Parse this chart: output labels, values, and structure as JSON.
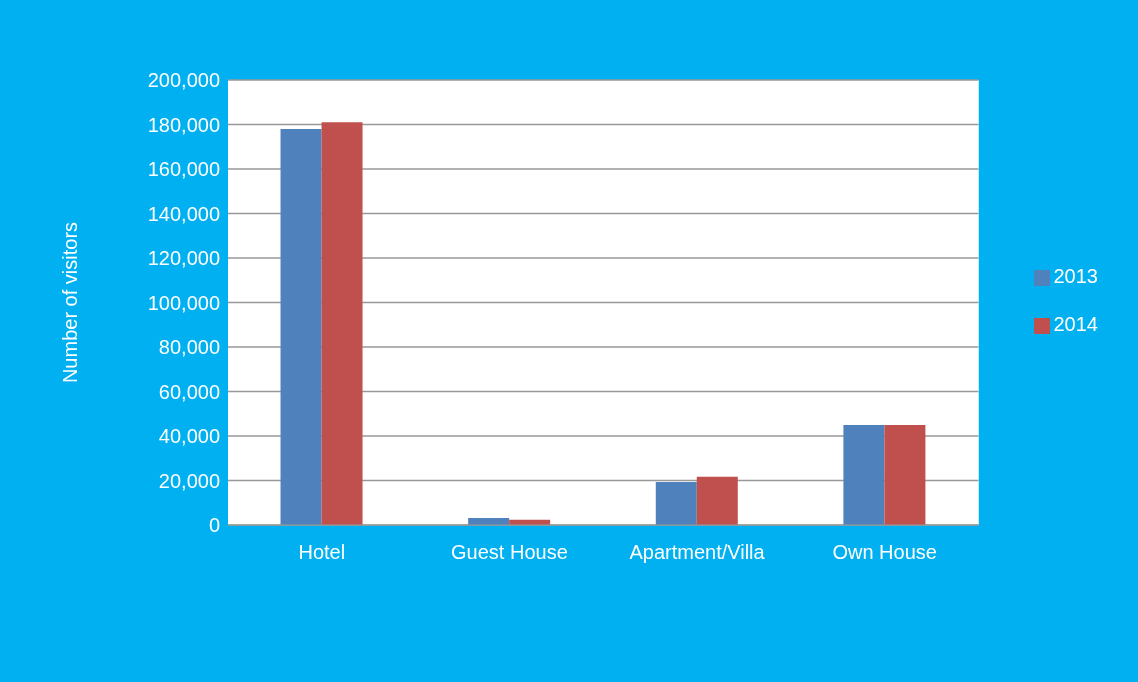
{
  "chart_data": {
    "type": "bar",
    "ylabel": "Number of visitors",
    "categories": [
      "Hotel",
      "Guest House",
      "Apartment/Villa",
      "Own House"
    ],
    "series": [
      {
        "name": "2013",
        "color": "#4f81bd",
        "values": [
          178000,
          3100,
          19300,
          45000
        ]
      },
      {
        "name": "2014",
        "color": "#c0504d",
        "values": [
          181000,
          2400,
          21700,
          45000
        ]
      }
    ],
    "ylim": [
      0,
      200000
    ],
    "yticks": [
      0,
      {
        "value": 20000,
        "label": "20,000"
      },
      {
        "value": 40000,
        "label": "40,000"
      },
      {
        "value": 60000,
        "label": "60,000"
      },
      {
        "value": 80000,
        "label": "80,000"
      },
      {
        "value": 100000,
        "label": "100,000"
      },
      {
        "value": 120000,
        "label": "120,000"
      },
      {
        "value": 140000,
        "label": "140,000"
      },
      {
        "value": 160000,
        "label": "160,000"
      },
      {
        "value": 180000,
        "label": "180,000"
      },
      {
        "value": 200000,
        "label": "200,000"
      }
    ],
    "grid": "y",
    "legend": "right"
  }
}
